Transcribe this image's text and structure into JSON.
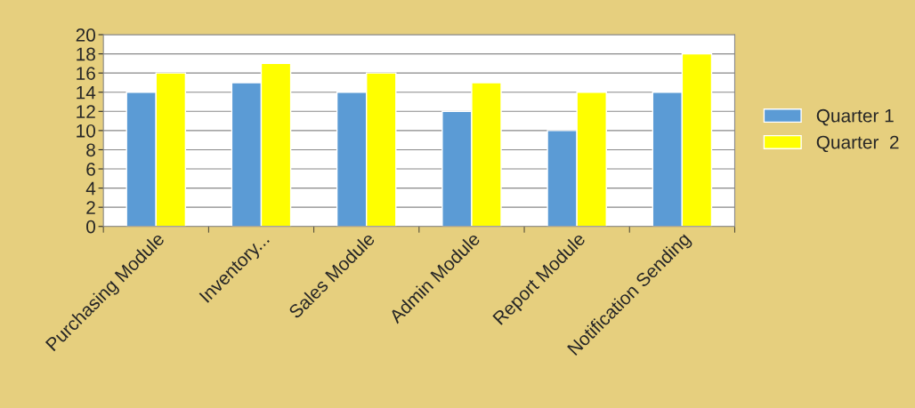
{
  "chart_data": {
    "type": "bar",
    "categories": [
      "Purchasing Module",
      "Inventory...",
      "Sales Module",
      "Admin Module",
      "Report Module",
      "Notification Sending"
    ],
    "series": [
      {
        "name": "Quarter 1",
        "color": "#5b9bd5",
        "values": [
          14,
          15,
          14,
          12,
          10,
          14
        ]
      },
      {
        "name": "Quarter  2",
        "color": "#ffff00",
        "values": [
          16,
          17,
          16,
          15,
          14,
          18
        ]
      }
    ],
    "ylim": [
      0,
      20
    ],
    "yticks": [
      0,
      2,
      4,
      6,
      8,
      10,
      12,
      14,
      16,
      18,
      20
    ],
    "grid": "y",
    "legend": "right"
  }
}
